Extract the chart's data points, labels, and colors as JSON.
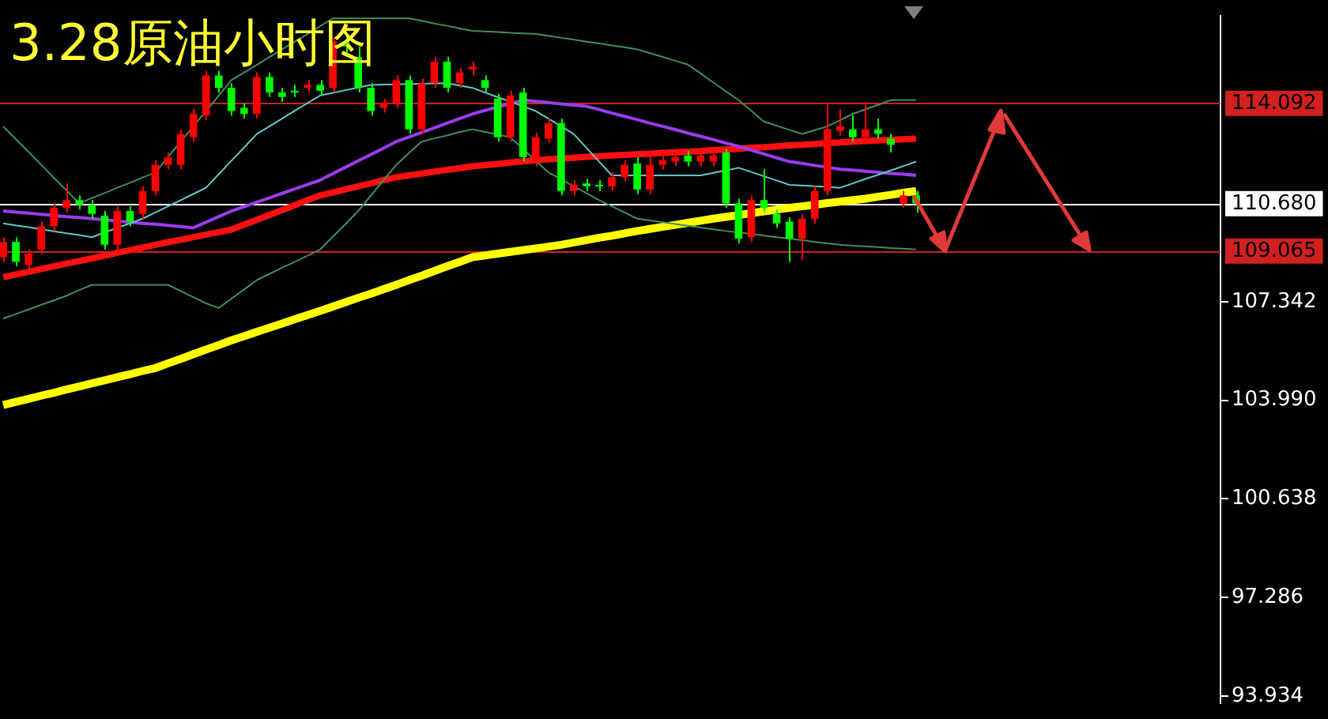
{
  "chart_data": {
    "type": "candlestick",
    "title": "3.28原油小时图",
    "categories": [
      null,
      null,
      null,
      null,
      null,
      null,
      null,
      null,
      null,
      null,
      null,
      null,
      null,
      null,
      null,
      null,
      null,
      null,
      null,
      null,
      null,
      null,
      null,
      null,
      null,
      null,
      null,
      null,
      null,
      null,
      null,
      null,
      null,
      null,
      null,
      null,
      null,
      null,
      null,
      null,
      null,
      null,
      null,
      null,
      null,
      null,
      null,
      null,
      null,
      null,
      null,
      null,
      null,
      null,
      null,
      null,
      null,
      null,
      null,
      null,
      null,
      null,
      null,
      null,
      null,
      null,
      null,
      null,
      null,
      null,
      null,
      null,
      null
    ],
    "ohlc": [
      [
        108.86,
        109.54,
        108.7,
        109.38
      ],
      [
        109.38,
        109.54,
        108.55,
        108.7
      ],
      [
        108.6,
        109.12,
        108.44,
        108.97
      ],
      [
        109.12,
        110.07,
        108.97,
        109.91
      ],
      [
        109.91,
        110.69,
        109.75,
        110.54
      ],
      [
        110.54,
        111.37,
        110.38,
        110.8
      ],
      [
        110.8,
        110.96,
        110.48,
        110.64
      ],
      [
        110.64,
        110.8,
        110.17,
        110.33
      ],
      [
        110.27,
        110.43,
        109.12,
        109.28
      ],
      [
        109.28,
        110.59,
        109.12,
        110.43
      ],
      [
        110.43,
        110.59,
        109.91,
        110.07
      ],
      [
        110.33,
        111.27,
        110.17,
        111.11
      ],
      [
        111.11,
        112.16,
        110.96,
        112.0
      ],
      [
        112.0,
        112.42,
        111.85,
        112.26
      ],
      [
        112.0,
        113.21,
        111.85,
        113.05
      ],
      [
        112.94,
        113.89,
        112.79,
        113.73
      ],
      [
        113.68,
        115.2,
        113.52,
        115.04
      ],
      [
        115.04,
        115.2,
        114.46,
        114.62
      ],
      [
        114.62,
        114.78,
        113.68,
        113.83
      ],
      [
        113.94,
        114.1,
        113.57,
        113.73
      ],
      [
        113.73,
        115.14,
        113.57,
        114.99
      ],
      [
        114.99,
        115.14,
        114.31,
        114.46
      ],
      [
        114.46,
        114.62,
        114.15,
        114.31
      ],
      [
        114.52,
        114.72,
        114.31,
        114.46
      ],
      [
        114.62,
        114.88,
        114.46,
        114.72
      ],
      [
        114.72,
        114.88,
        114.36,
        114.52
      ],
      [
        114.62,
        116.35,
        114.46,
        116.19
      ],
      [
        116.19,
        116.35,
        115.67,
        116.03
      ],
      [
        115.67,
        116.03,
        114.46,
        114.62
      ],
      [
        114.62,
        114.78,
        113.68,
        113.83
      ],
      [
        113.94,
        114.25,
        113.78,
        114.1
      ],
      [
        114.1,
        115.04,
        113.94,
        114.88
      ],
      [
        114.88,
        115.04,
        113.05,
        113.21
      ],
      [
        113.21,
        114.93,
        113.05,
        114.78
      ],
      [
        114.78,
        115.67,
        114.62,
        115.51
      ],
      [
        115.51,
        115.67,
        114.46,
        114.62
      ],
      [
        114.78,
        115.3,
        114.62,
        115.14
      ],
      [
        115.25,
        115.51,
        115.04,
        115.35
      ],
      [
        114.88,
        115.04,
        114.46,
        114.62
      ],
      [
        114.25,
        114.41,
        112.79,
        112.94
      ],
      [
        112.94,
        114.52,
        112.79,
        114.36
      ],
      [
        114.46,
        114.62,
        112.11,
        112.26
      ],
      [
        112.11,
        113.1,
        111.95,
        112.94
      ],
      [
        112.89,
        113.57,
        112.74,
        113.42
      ],
      [
        113.42,
        113.57,
        110.96,
        111.11
      ],
      [
        111.11,
        111.48,
        110.96,
        111.32
      ],
      [
        111.37,
        111.53,
        111.11,
        111.27
      ],
      [
        111.32,
        111.48,
        111.11,
        111.27
      ],
      [
        111.27,
        111.74,
        111.11,
        111.58
      ],
      [
        111.58,
        112.16,
        111.43,
        112.0
      ],
      [
        112.05,
        112.26,
        111.01,
        111.16
      ],
      [
        111.16,
        112.37,
        111.01,
        112.0
      ],
      [
        112.0,
        112.32,
        111.85,
        112.16
      ],
      [
        112.11,
        112.42,
        111.95,
        112.26
      ],
      [
        112.32,
        112.47,
        111.95,
        112.11
      ],
      [
        112.11,
        112.47,
        111.95,
        112.32
      ],
      [
        112.11,
        112.47,
        111.95,
        112.32
      ],
      [
        112.42,
        112.53,
        110.54,
        110.69
      ],
      [
        110.69,
        110.85,
        109.33,
        109.49
      ],
      [
        109.54,
        110.96,
        109.38,
        110.8
      ],
      [
        110.8,
        111.85,
        110.38,
        110.54
      ],
      [
        110.33,
        110.48,
        109.86,
        110.01
      ],
      [
        110.07,
        110.22,
        108.7,
        109.49
      ],
      [
        109.49,
        110.33,
        108.76,
        110.17
      ],
      [
        110.17,
        111.27,
        110.01,
        111.11
      ],
      [
        111.11,
        114.1,
        110.96,
        113.21
      ],
      [
        113.15,
        113.89,
        113.0,
        113.31
      ],
      [
        113.21,
        113.68,
        112.79,
        112.94
      ],
      [
        112.94,
        114.1,
        112.79,
        113.21
      ],
      [
        113.21,
        113.57,
        112.89,
        113.05
      ],
      [
        112.89,
        113.05,
        112.42,
        112.68
      ],
      [
        110.69,
        111.11,
        110.54,
        110.96
      ],
      [
        110.96,
        111.11,
        110.38,
        110.69
      ]
    ],
    "colors": [
      "#ff0000",
      "#00ff00",
      "#ff0000",
      "#ff0000",
      "#ff0000",
      "#ff0000",
      "#00ff00",
      "#00ff00",
      "#00ff00",
      "#ff0000",
      "#00ff00",
      "#ff0000",
      "#ff0000",
      "#ff0000",
      "#ff0000",
      "#ff0000",
      "#ff0000",
      "#00ff00",
      "#00ff00",
      "#00ff00",
      "#ff0000",
      "#00ff00",
      "#00ff00",
      "#00ff00",
      "#ff0000",
      "#00ff00",
      "#ff0000",
      "#00ff00",
      "#00ff00",
      "#00ff00",
      "#ff0000",
      "#ff0000",
      "#00ff00",
      "#ff0000",
      "#ff0000",
      "#00ff00",
      "#ff0000",
      "#ff0000",
      "#00ff00",
      "#00ff00",
      "#ff0000",
      "#00ff00",
      "#ff0000",
      "#ff0000",
      "#00ff00",
      "#ff0000",
      "#00ff00",
      "#00ff00",
      "#ff0000",
      "#ff0000",
      "#00ff00",
      "#ff0000",
      "#ff0000",
      "#ff0000",
      "#00ff00",
      "#ff0000",
      "#ff0000",
      "#00ff00",
      "#00ff00",
      "#ff0000",
      "#00ff00",
      "#00ff00",
      "#00ff00",
      "#ff0000",
      "#ff0000",
      "#ff0000",
      "#ff0000",
      "#00ff00",
      "#ff0000",
      "#00ff00",
      "#00ff00",
      "#ff0000",
      "#00ff00"
    ],
    "series": [
      {
        "type": "line",
        "color": "#3f8f5a",
        "values": [
          113.31,
          112.87,
          112.44,
          112.0,
          111.56,
          111.13,
          110.69,
          110.87,
          111.04,
          111.22,
          111.39,
          111.57,
          111.74,
          112.26,
          112.79,
          113.31,
          113.83,
          114.36,
          114.88,
          115.14,
          115.4,
          115.67,
          115.93,
          116.19,
          116.45,
          116.72,
          116.98,
          116.98,
          116.98,
          116.98,
          116.98,
          116.98,
          116.98,
          116.9,
          116.81,
          116.73,
          116.64,
          116.56,
          116.54,
          116.52,
          116.49,
          116.47,
          116.45,
          116.39,
          116.32,
          116.26,
          116.19,
          116.13,
          116.06,
          116.0,
          115.93,
          115.8,
          115.67,
          115.54,
          115.41,
          115.11,
          114.8,
          114.5,
          114.2,
          113.84,
          113.47,
          113.33,
          113.19,
          113.05,
          113.18,
          113.31,
          113.52,
          113.73,
          113.89,
          114.04,
          114.2,
          114.2,
          114.2
        ]
      },
      {
        "type": "line",
        "color": "#3f8f5a",
        "values": [
          106.77,
          106.93,
          107.08,
          107.24,
          107.39,
          107.55,
          107.74,
          107.92,
          107.92,
          107.92,
          107.92,
          107.92,
          107.92,
          107.92,
          107.71,
          107.5,
          107.29,
          107.13,
          107.45,
          107.76,
          108.08,
          108.29,
          108.5,
          108.7,
          108.91,
          109.12,
          109.56,
          109.99,
          110.43,
          110.95,
          111.48,
          112.0,
          112.4,
          112.79,
          112.9,
          113.0,
          113.11,
          113.21,
          113.12,
          113.03,
          112.94,
          112.54,
          112.14,
          111.74,
          111.51,
          111.27,
          111.04,
          110.8,
          110.59,
          110.38,
          110.17,
          110.11,
          110.05,
          109.99,
          109.93,
          109.87,
          109.81,
          109.75,
          109.7,
          109.65,
          109.59,
          109.54,
          109.49,
          109.44,
          109.38,
          109.33,
          109.28,
          109.25,
          109.23,
          109.2,
          109.17,
          109.15,
          109.12
        ]
      },
      {
        "type": "line",
        "color": "#5fc8c8",
        "values": [
          110.01,
          109.94,
          109.88,
          109.81,
          109.74,
          109.67,
          109.61,
          109.54,
          109.7,
          109.86,
          110.01,
          110.17,
          110.38,
          110.59,
          110.8,
          111.01,
          111.22,
          111.68,
          112.14,
          112.59,
          113.05,
          113.31,
          113.57,
          113.84,
          114.1,
          114.36,
          114.45,
          114.54,
          114.63,
          114.72,
          114.73,
          114.74,
          114.75,
          114.76,
          114.77,
          114.78,
          114.7,
          114.62,
          114.46,
          114.3,
          114.15,
          113.99,
          113.83,
          113.57,
          113.31,
          113.05,
          112.58,
          112.11,
          111.64,
          111.64,
          111.64,
          111.64,
          111.64,
          111.64,
          111.64,
          111.64,
          111.73,
          111.81,
          111.9,
          111.76,
          111.61,
          111.47,
          111.32,
          111.3,
          111.27,
          111.25,
          111.22,
          111.37,
          111.52,
          111.66,
          111.81,
          111.96,
          112.11
        ]
      },
      {
        "type": "line",
        "color": "#9a3cf0",
        "values": [
          110.43,
          110.39,
          110.36,
          110.32,
          110.28,
          110.24,
          110.21,
          110.17,
          110.13,
          110.09,
          110.05,
          110.01,
          109.98,
          109.94,
          109.9,
          109.86,
          110.05,
          110.24,
          110.43,
          110.58,
          110.73,
          110.88,
          111.03,
          111.18,
          111.33,
          111.48,
          111.7,
          111.92,
          112.14,
          112.35,
          112.57,
          112.79,
          112.95,
          113.1,
          113.26,
          113.42,
          113.57,
          113.73,
          113.85,
          113.97,
          114.08,
          114.2,
          114.16,
          114.12,
          114.07,
          114.03,
          113.99,
          113.88,
          113.76,
          113.65,
          113.54,
          113.42,
          113.31,
          113.2,
          113.08,
          112.97,
          112.86,
          112.74,
          112.63,
          112.5,
          112.37,
          112.24,
          112.11,
          112.05,
          111.98,
          111.92,
          111.85,
          111.82,
          111.78,
          111.75,
          111.71,
          111.68,
          111.64
        ]
      },
      {
        "type": "line",
        "color": "#ff1010",
        "values": [
          108.18,
          108.27,
          108.36,
          108.46,
          108.55,
          108.64,
          108.73,
          108.82,
          108.91,
          109.01,
          109.1,
          109.19,
          109.28,
          109.37,
          109.45,
          109.54,
          109.63,
          109.71,
          109.8,
          109.97,
          110.13,
          110.3,
          110.46,
          110.63,
          110.8,
          110.96,
          111.06,
          111.17,
          111.27,
          111.37,
          111.48,
          111.58,
          111.64,
          111.7,
          111.77,
          111.83,
          111.89,
          111.95,
          111.99,
          112.03,
          112.08,
          112.12,
          112.16,
          112.19,
          112.21,
          112.24,
          112.27,
          112.29,
          112.32,
          112.34,
          112.36,
          112.38,
          112.41,
          112.43,
          112.45,
          112.47,
          112.5,
          112.52,
          112.55,
          112.58,
          112.6,
          112.63,
          112.66,
          112.68,
          112.71,
          112.74,
          112.76,
          112.79,
          112.81,
          112.83,
          112.85,
          112.87,
          112.89
        ]
      },
      {
        "type": "line",
        "color": "#ffff00",
        "values": [
          103.83,
          103.94,
          104.04,
          104.15,
          104.25,
          104.36,
          104.46,
          104.57,
          104.67,
          104.78,
          104.88,
          104.99,
          105.09,
          105.25,
          105.4,
          105.56,
          105.72,
          105.87,
          106.03,
          106.17,
          106.32,
          106.46,
          106.6,
          106.75,
          106.89,
          107.03,
          107.18,
          107.33,
          107.48,
          107.62,
          107.77,
          107.92,
          108.08,
          108.23,
          108.39,
          108.55,
          108.7,
          108.86,
          108.92,
          108.98,
          109.04,
          109.1,
          109.16,
          109.22,
          109.28,
          109.36,
          109.44,
          109.52,
          109.59,
          109.67,
          109.75,
          109.82,
          109.89,
          109.96,
          110.03,
          110.1,
          110.17,
          110.23,
          110.29,
          110.36,
          110.42,
          110.48,
          110.54,
          110.59,
          110.64,
          110.7,
          110.75,
          110.8,
          110.85,
          110.92,
          110.98,
          111.05,
          111.11
        ]
      }
    ],
    "ylim": [
      93.68,
      117.08
    ],
    "yticks": [
      93.934,
      97.286,
      100.638,
      {
        "value": 103.99,
        "label": "103.990"
      },
      107.342
    ],
    "tick_labels": "y",
    "marker": "none",
    "ref_lines": [
      {
        "axis": "y",
        "value": 114.092,
        "label": "114.092",
        "color": "#d02020"
      },
      {
        "axis": "y",
        "value": 110.68,
        "label": "110.680",
        "color": "#ffffff"
      },
      {
        "axis": "y",
        "value": 109.065,
        "label": "109.065",
        "color": "#d02020"
      }
    ]
  }
}
